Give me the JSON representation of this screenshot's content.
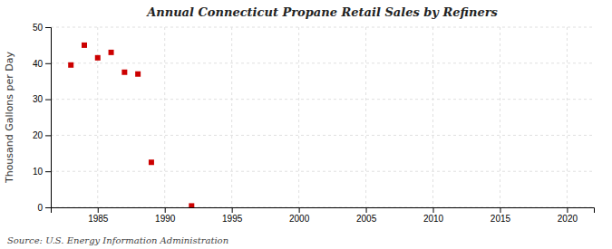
{
  "chart_data": {
    "type": "scatter",
    "title": "Annual Connecticut Propane Retail Sales by Refiners",
    "ylabel": "Thousand Gallons per Day",
    "source": "Source: U.S. Energy Information Administration",
    "x": [
      1983,
      1984,
      1985,
      1986,
      1987,
      1988,
      1989,
      1992
    ],
    "values": [
      39.5,
      45.0,
      41.5,
      43.0,
      37.5,
      37.0,
      12.5,
      0.4
    ],
    "color": "#cc0000",
    "marker": "square",
    "xlim": [
      1981.5,
      2022
    ],
    "ylim": [
      0,
      50
    ],
    "xticks": [
      1985,
      1990,
      1995,
      2000,
      2005,
      2010,
      2015,
      2020
    ],
    "yticks": [
      0,
      10,
      20,
      30,
      40,
      50
    ],
    "grid": true
  }
}
